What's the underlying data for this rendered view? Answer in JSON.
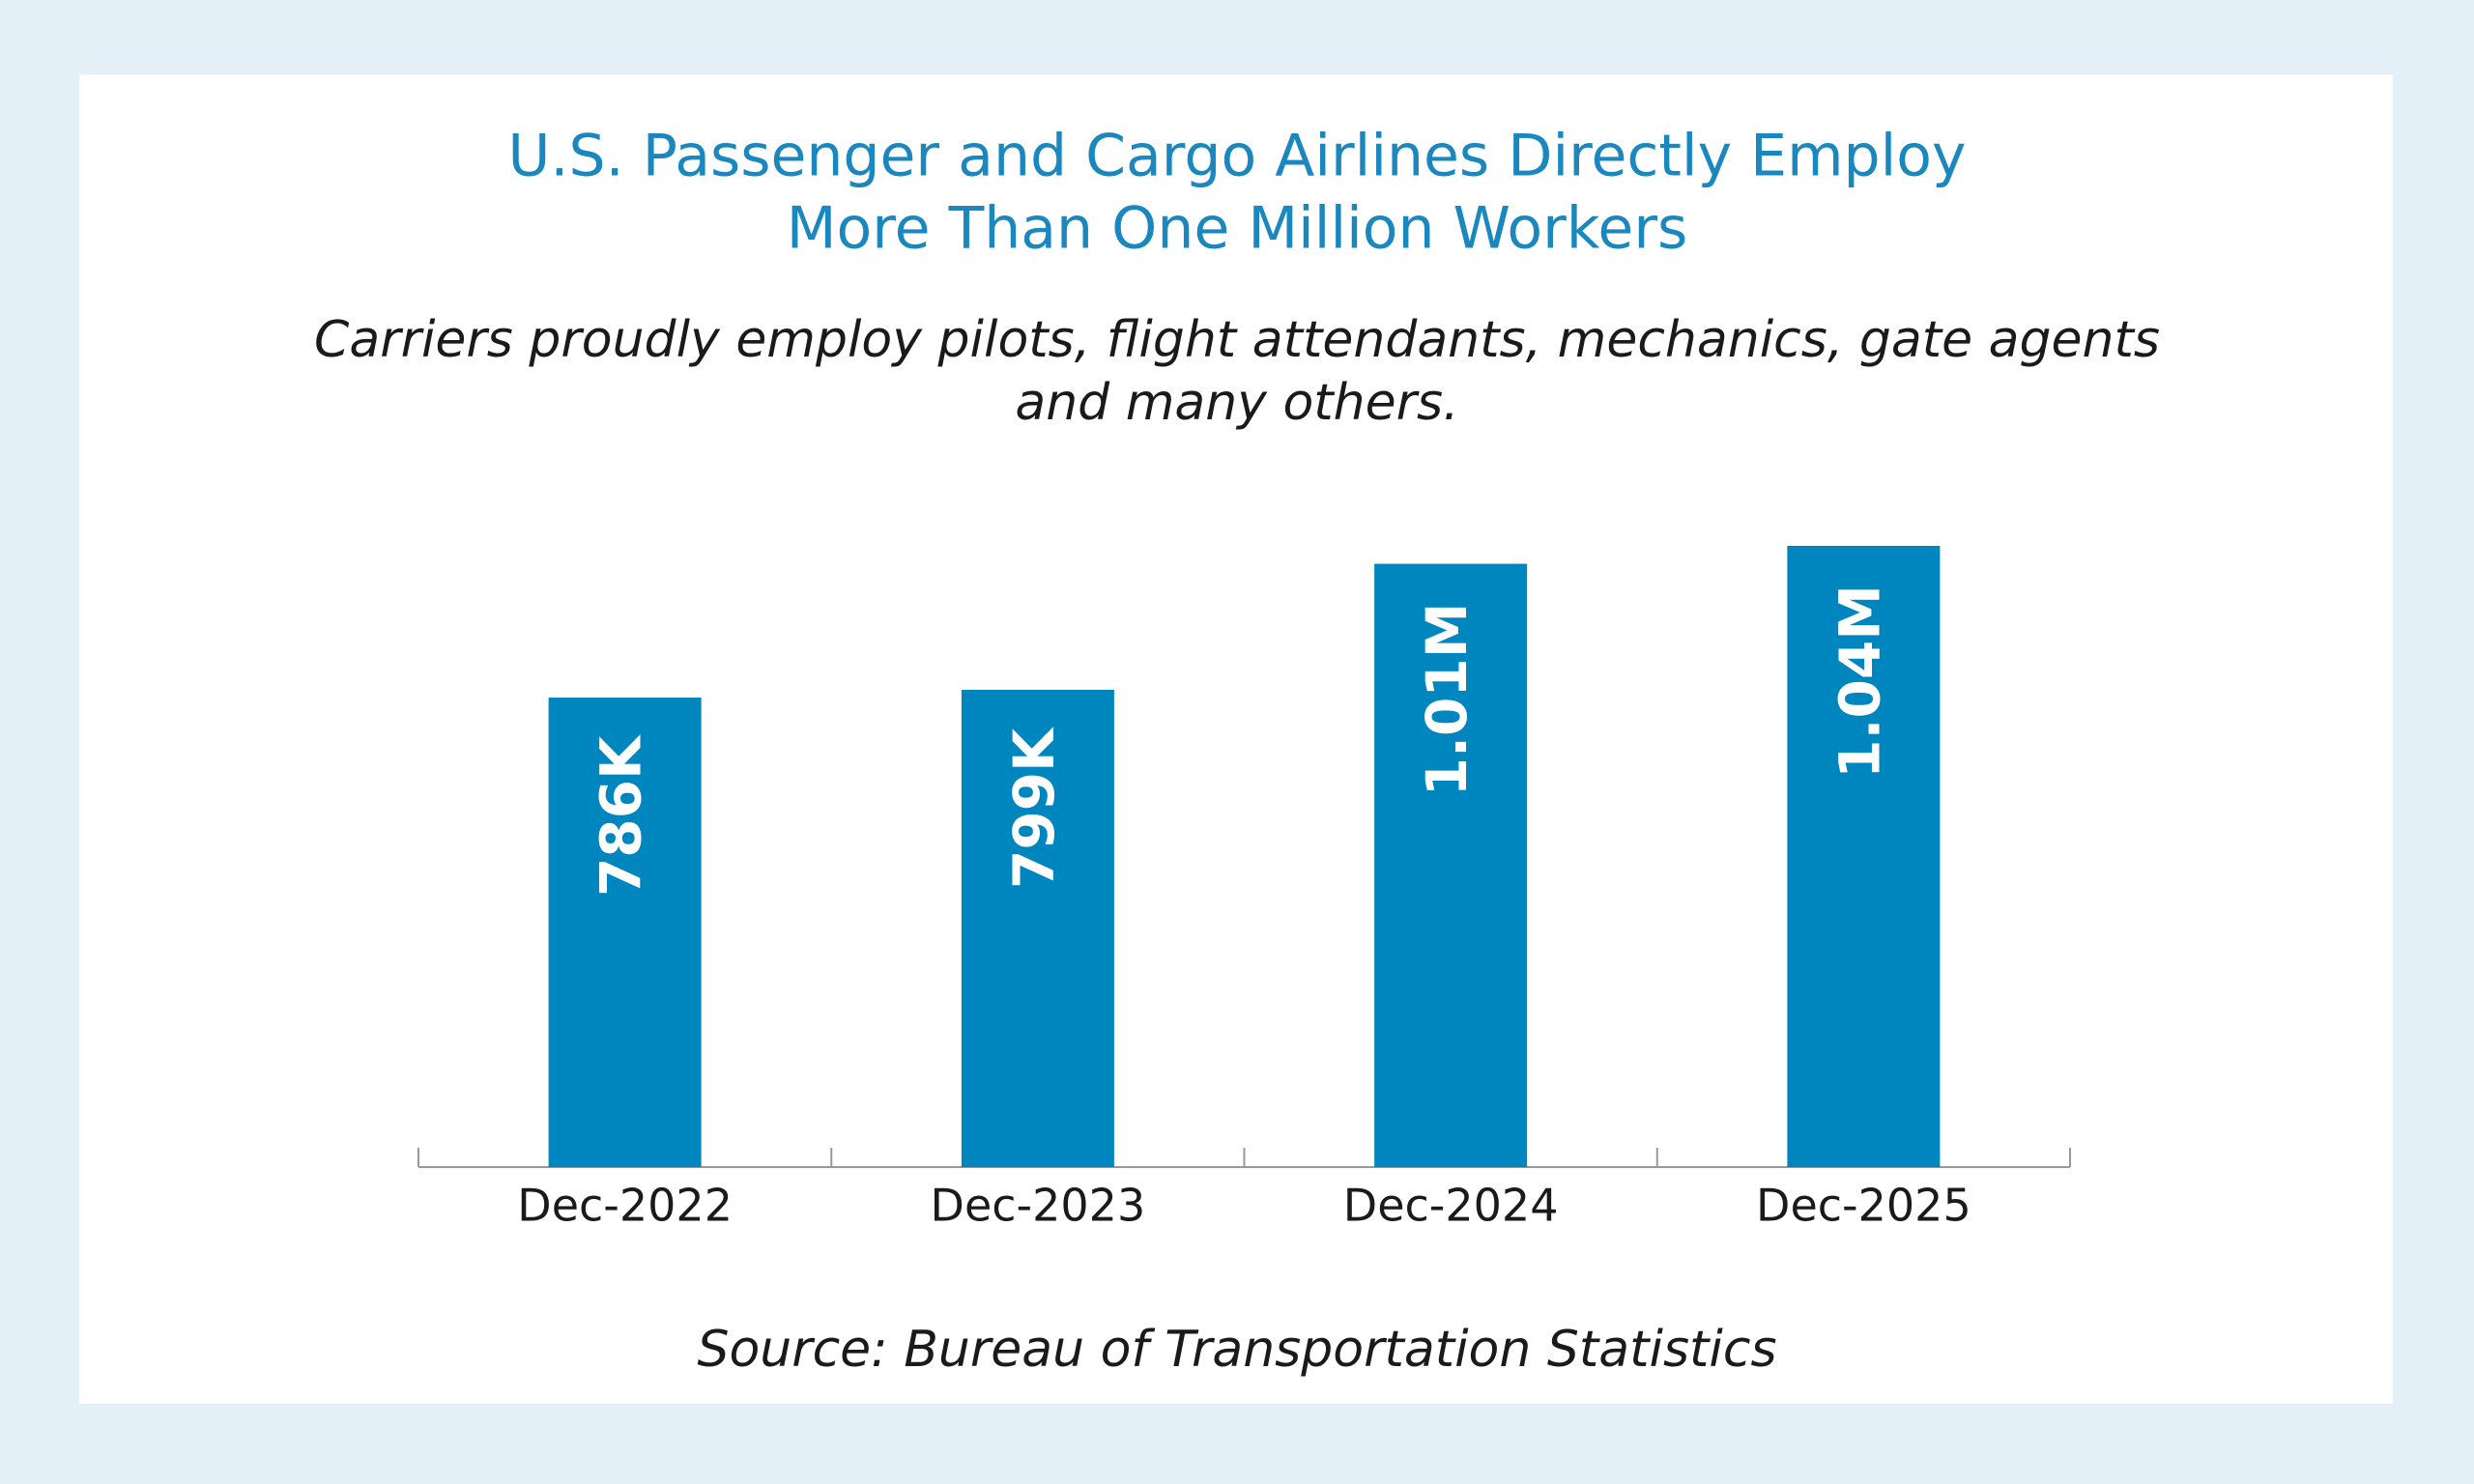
{
  "chart_data": {
    "type": "bar",
    "title": [
      "U.S. Passenger and Cargo Airlines Directly Employ",
      "More Than One Million Workers"
    ],
    "subtitle": [
      "Carriers proudly employ pilots, flight attendants, mechanics, gate agents",
      "and many others."
    ],
    "categories": [
      "Dec-2022",
      "Dec-2023",
      "Dec-2024",
      "Dec-2025"
    ],
    "values": [
      786000,
      799000,
      1010000,
      1040000
    ],
    "value_labels": [
      "786K",
      "799K",
      "1.01M",
      "1.04M"
    ],
    "color": "#0086bf",
    "source": "Source: Bureau of Transportation Statistics"
  }
}
